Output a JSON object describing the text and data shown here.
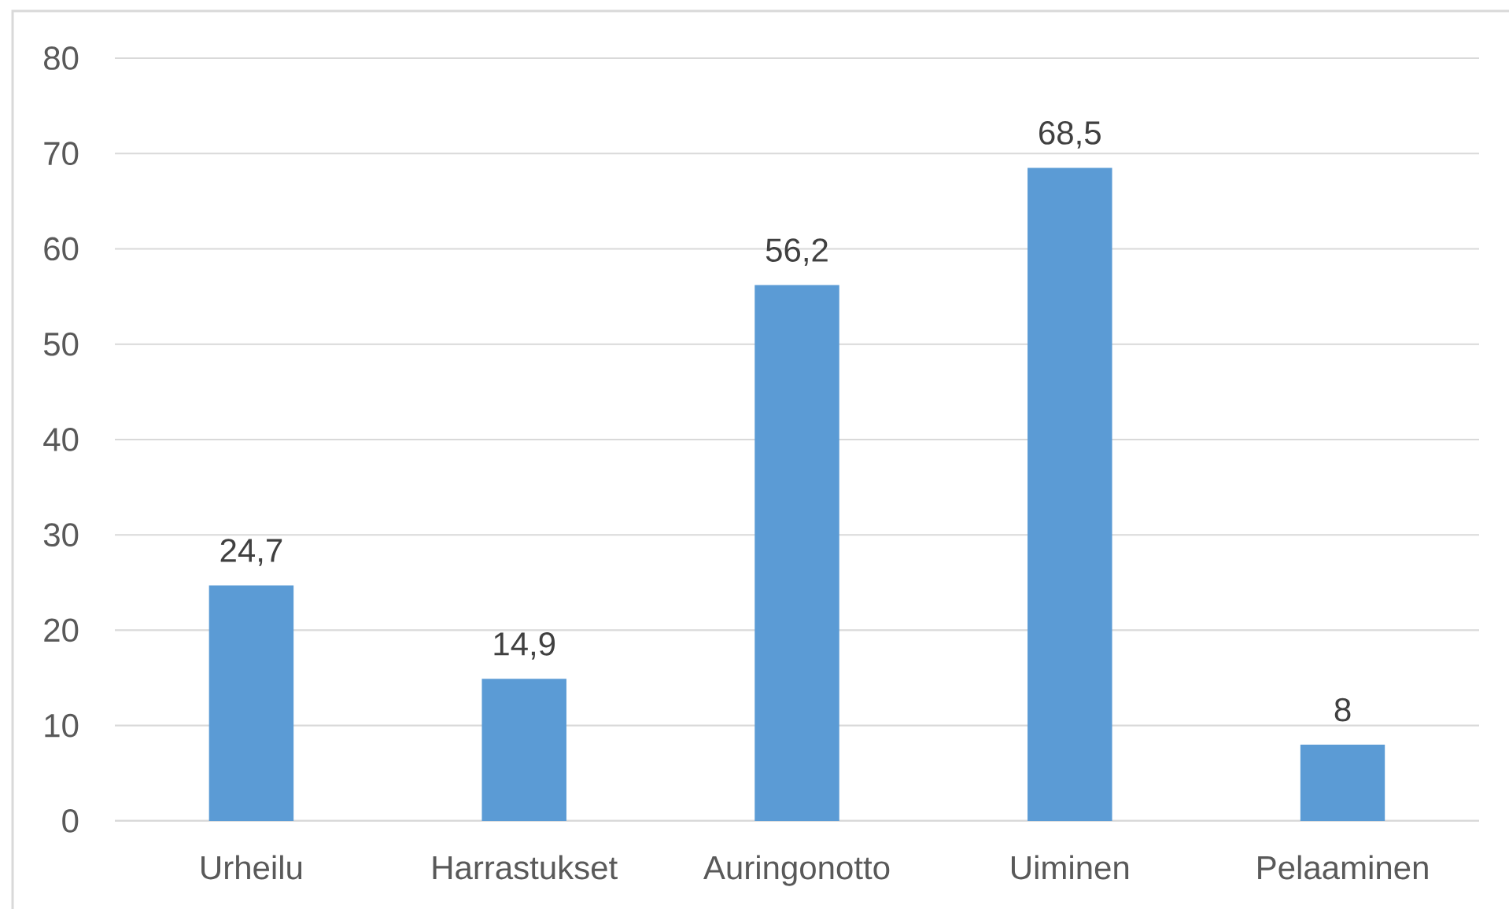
{
  "chart_data": {
    "type": "bar",
    "categories": [
      "Urheilu",
      "Harrastukset",
      "Auringonotto",
      "Uiminen",
      "Pelaaminen"
    ],
    "values": [
      24.7,
      14.9,
      56.2,
      68.5,
      8
    ],
    "value_labels": [
      "24,7",
      "14,9",
      "56,2",
      "68,5",
      "8"
    ],
    "color": "#5b9bd5",
    "ylim": [
      0,
      80
    ],
    "yticks": [
      0,
      10,
      20,
      30,
      40,
      50,
      60,
      70,
      80
    ],
    "grid": "y"
  }
}
